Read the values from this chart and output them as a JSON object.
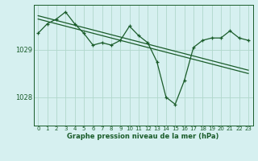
{
  "title": "Graphe pression niveau de la mer (hPa)",
  "bg_color": "#d6f0f0",
  "grid_color": "#b0d8cc",
  "line_color": "#1a5c2a",
  "x_labels": [
    "0",
    "1",
    "2",
    "3",
    "4",
    "5",
    "6",
    "7",
    "8",
    "9",
    "10",
    "11",
    "12",
    "13",
    "14",
    "15",
    "16",
    "17",
    "18",
    "19",
    "20",
    "21",
    "22",
    "23"
  ],
  "y_ticks": [
    1028,
    1029
  ],
  "ylim": [
    1027.4,
    1029.95
  ],
  "main_series": [
    1029.35,
    1029.55,
    1029.65,
    1029.8,
    1029.55,
    1029.35,
    1029.1,
    1029.15,
    1029.1,
    1029.2,
    1029.5,
    1029.3,
    1029.15,
    1028.75,
    1028.0,
    1027.85,
    1028.35,
    1029.05,
    1029.2,
    1029.25,
    1029.25,
    1029.4,
    1029.25,
    1029.2
  ],
  "trend_series1": [
    1029.65,
    1029.6,
    1029.55,
    1029.5,
    1029.45,
    1029.4,
    1029.35,
    1029.3,
    1029.25,
    1029.2,
    1029.15,
    1029.1,
    1029.05,
    1029.0,
    1028.95,
    1028.9,
    1028.85,
    1028.8,
    1028.75,
    1028.7,
    1028.65,
    1028.6,
    1028.55,
    1028.5
  ],
  "trend_series2": [
    1029.72,
    1029.67,
    1029.62,
    1029.57,
    1029.52,
    1029.47,
    1029.42,
    1029.37,
    1029.32,
    1029.27,
    1029.22,
    1029.17,
    1029.12,
    1029.07,
    1029.02,
    1028.97,
    1028.92,
    1028.87,
    1028.82,
    1028.77,
    1028.72,
    1028.67,
    1028.62,
    1028.57
  ],
  "xlabel_fontsize": 6.0,
  "xtick_fontsize": 5.0,
  "ytick_fontsize": 6.0
}
